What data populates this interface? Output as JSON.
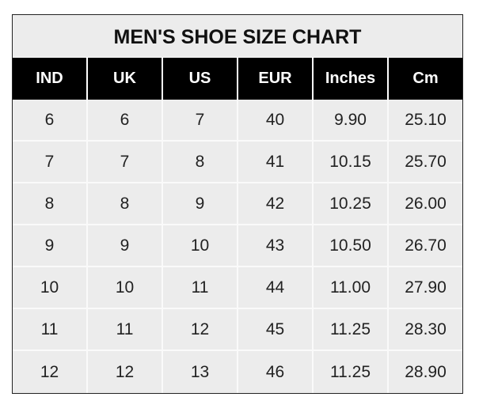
{
  "title": "MEN'S SHOE SIZE CHART",
  "headers": [
    "IND",
    "UK",
    "US",
    "EUR",
    "Inches",
    "Cm"
  ],
  "rows": [
    [
      "6",
      "6",
      "7",
      "40",
      "9.90",
      "25.10"
    ],
    [
      "7",
      "7",
      "8",
      "41",
      "10.15",
      "25.70"
    ],
    [
      "8",
      "8",
      "9",
      "42",
      "10.25",
      "26.00"
    ],
    [
      "9",
      "9",
      "10",
      "43",
      "10.50",
      "26.70"
    ],
    [
      "10",
      "10",
      "11",
      "44",
      "11.00",
      "27.90"
    ],
    [
      "11",
      "11",
      "12",
      "45",
      "11.25",
      "28.30"
    ],
    [
      "12",
      "12",
      "13",
      "46",
      "11.25",
      "28.90"
    ]
  ],
  "colors": {
    "header_bg": "#000000",
    "cell_bg": "#ececec"
  }
}
